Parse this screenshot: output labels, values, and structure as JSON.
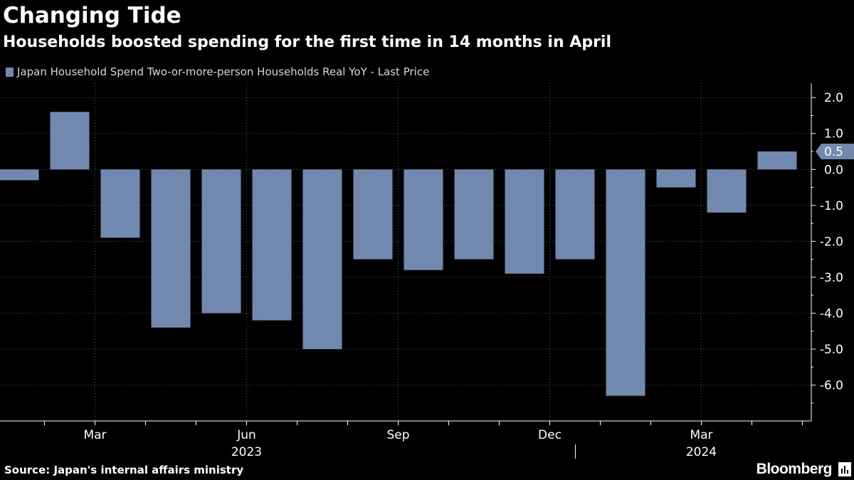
{
  "title": "Changing Tide",
  "subtitle": "Households boosted spending for the first time in 14 months in April",
  "source": "Source: Japan's internal affairs ministry",
  "brand": "Bloomberg",
  "brand_icon": "bloomberg-terminal-icon",
  "colors": {
    "background": "#000000",
    "bar": "#7189af",
    "axis": "#ffffff",
    "grid": "#555555",
    "label_box": "#7189af"
  },
  "chart_data": {
    "type": "bar",
    "legend": "Japan Household Spend Two-or-more-person Households Real YoY - Last Price",
    "legend_position": "top-left",
    "categories": [
      "2023-01",
      "2023-02",
      "2023-03",
      "2023-04",
      "2023-05",
      "2023-06",
      "2023-07",
      "2023-08",
      "2023-09",
      "2023-10",
      "2023-11",
      "2023-12",
      "2024-01",
      "2024-02",
      "2024-03",
      "2024-04"
    ],
    "values": [
      -0.3,
      1.6,
      -1.9,
      -4.4,
      -4.0,
      -4.2,
      -5.0,
      -2.5,
      -2.8,
      -2.5,
      -2.9,
      -2.5,
      -6.3,
      -0.5,
      -1.2,
      0.5
    ],
    "ylim": [
      -7.0,
      2.4
    ],
    "y_ticks": [
      2.0,
      1.0,
      0.0,
      -1.0,
      -2.0,
      -3.0,
      -4.0,
      -5.0,
      -6.0
    ],
    "y_tick_labels": [
      "2.0",
      "1.0",
      "0.0",
      "-1.0",
      "-2.0",
      "-3.0",
      "-4.0",
      "-5.0",
      "-6.0"
    ],
    "y_axis_position": "right",
    "grid": true,
    "x_tick_labels": [
      {
        "label": "Mar",
        "category": "2023-03"
      },
      {
        "label": "Jun",
        "category": "2023-06"
      },
      {
        "label": "Sep",
        "category": "2023-09"
      },
      {
        "label": "Dec",
        "category": "2023-12"
      },
      {
        "label": "Mar",
        "category": "2024-03"
      }
    ],
    "year_labels": [
      {
        "label": "2023",
        "category": "2023-06"
      },
      {
        "label": "2024",
        "category": "2024-03"
      }
    ],
    "last_value_label": "0.5",
    "last_value": 0.5
  }
}
